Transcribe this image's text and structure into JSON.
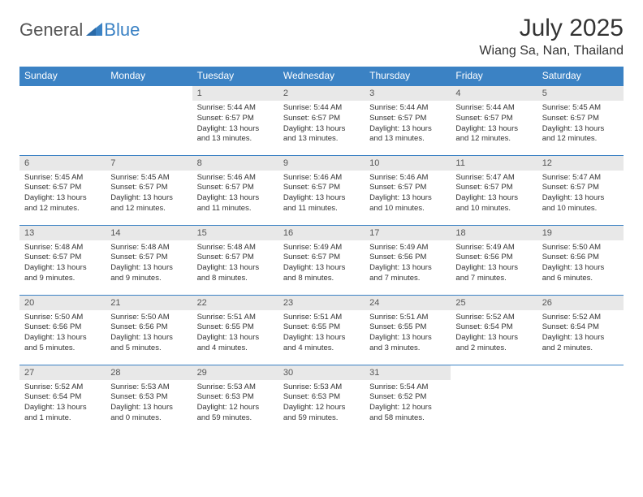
{
  "brand": {
    "part1": "General",
    "part2": "Blue"
  },
  "title": "July 2025",
  "location": "Wiang Sa, Nan, Thailand",
  "colors": {
    "accent": "#3b82c4",
    "header_bg": "#3b82c4",
    "header_text": "#ffffff",
    "daynum_bg": "#e8e8e8",
    "body_text": "#333333",
    "background": "#ffffff"
  },
  "typography": {
    "title_fontsize": 30,
    "location_fontsize": 16,
    "dayheader_fontsize": 12,
    "daynum_fontsize": 11,
    "body_fontsize": 9.5
  },
  "day_headers": [
    "Sunday",
    "Monday",
    "Tuesday",
    "Wednesday",
    "Thursday",
    "Friday",
    "Saturday"
  ],
  "weeks": [
    [
      {
        "n": "",
        "sunrise": "",
        "sunset": "",
        "daylight": ""
      },
      {
        "n": "",
        "sunrise": "",
        "sunset": "",
        "daylight": ""
      },
      {
        "n": "1",
        "sunrise": "Sunrise: 5:44 AM",
        "sunset": "Sunset: 6:57 PM",
        "daylight": "Daylight: 13 hours and 13 minutes."
      },
      {
        "n": "2",
        "sunrise": "Sunrise: 5:44 AM",
        "sunset": "Sunset: 6:57 PM",
        "daylight": "Daylight: 13 hours and 13 minutes."
      },
      {
        "n": "3",
        "sunrise": "Sunrise: 5:44 AM",
        "sunset": "Sunset: 6:57 PM",
        "daylight": "Daylight: 13 hours and 13 minutes."
      },
      {
        "n": "4",
        "sunrise": "Sunrise: 5:44 AM",
        "sunset": "Sunset: 6:57 PM",
        "daylight": "Daylight: 13 hours and 12 minutes."
      },
      {
        "n": "5",
        "sunrise": "Sunrise: 5:45 AM",
        "sunset": "Sunset: 6:57 PM",
        "daylight": "Daylight: 13 hours and 12 minutes."
      }
    ],
    [
      {
        "n": "6",
        "sunrise": "Sunrise: 5:45 AM",
        "sunset": "Sunset: 6:57 PM",
        "daylight": "Daylight: 13 hours and 12 minutes."
      },
      {
        "n": "7",
        "sunrise": "Sunrise: 5:45 AM",
        "sunset": "Sunset: 6:57 PM",
        "daylight": "Daylight: 13 hours and 12 minutes."
      },
      {
        "n": "8",
        "sunrise": "Sunrise: 5:46 AM",
        "sunset": "Sunset: 6:57 PM",
        "daylight": "Daylight: 13 hours and 11 minutes."
      },
      {
        "n": "9",
        "sunrise": "Sunrise: 5:46 AM",
        "sunset": "Sunset: 6:57 PM",
        "daylight": "Daylight: 13 hours and 11 minutes."
      },
      {
        "n": "10",
        "sunrise": "Sunrise: 5:46 AM",
        "sunset": "Sunset: 6:57 PM",
        "daylight": "Daylight: 13 hours and 10 minutes."
      },
      {
        "n": "11",
        "sunrise": "Sunrise: 5:47 AM",
        "sunset": "Sunset: 6:57 PM",
        "daylight": "Daylight: 13 hours and 10 minutes."
      },
      {
        "n": "12",
        "sunrise": "Sunrise: 5:47 AM",
        "sunset": "Sunset: 6:57 PM",
        "daylight": "Daylight: 13 hours and 10 minutes."
      }
    ],
    [
      {
        "n": "13",
        "sunrise": "Sunrise: 5:48 AM",
        "sunset": "Sunset: 6:57 PM",
        "daylight": "Daylight: 13 hours and 9 minutes."
      },
      {
        "n": "14",
        "sunrise": "Sunrise: 5:48 AM",
        "sunset": "Sunset: 6:57 PM",
        "daylight": "Daylight: 13 hours and 9 minutes."
      },
      {
        "n": "15",
        "sunrise": "Sunrise: 5:48 AM",
        "sunset": "Sunset: 6:57 PM",
        "daylight": "Daylight: 13 hours and 8 minutes."
      },
      {
        "n": "16",
        "sunrise": "Sunrise: 5:49 AM",
        "sunset": "Sunset: 6:57 PM",
        "daylight": "Daylight: 13 hours and 8 minutes."
      },
      {
        "n": "17",
        "sunrise": "Sunrise: 5:49 AM",
        "sunset": "Sunset: 6:56 PM",
        "daylight": "Daylight: 13 hours and 7 minutes."
      },
      {
        "n": "18",
        "sunrise": "Sunrise: 5:49 AM",
        "sunset": "Sunset: 6:56 PM",
        "daylight": "Daylight: 13 hours and 7 minutes."
      },
      {
        "n": "19",
        "sunrise": "Sunrise: 5:50 AM",
        "sunset": "Sunset: 6:56 PM",
        "daylight": "Daylight: 13 hours and 6 minutes."
      }
    ],
    [
      {
        "n": "20",
        "sunrise": "Sunrise: 5:50 AM",
        "sunset": "Sunset: 6:56 PM",
        "daylight": "Daylight: 13 hours and 5 minutes."
      },
      {
        "n": "21",
        "sunrise": "Sunrise: 5:50 AM",
        "sunset": "Sunset: 6:56 PM",
        "daylight": "Daylight: 13 hours and 5 minutes."
      },
      {
        "n": "22",
        "sunrise": "Sunrise: 5:51 AM",
        "sunset": "Sunset: 6:55 PM",
        "daylight": "Daylight: 13 hours and 4 minutes."
      },
      {
        "n": "23",
        "sunrise": "Sunrise: 5:51 AM",
        "sunset": "Sunset: 6:55 PM",
        "daylight": "Daylight: 13 hours and 4 minutes."
      },
      {
        "n": "24",
        "sunrise": "Sunrise: 5:51 AM",
        "sunset": "Sunset: 6:55 PM",
        "daylight": "Daylight: 13 hours and 3 minutes."
      },
      {
        "n": "25",
        "sunrise": "Sunrise: 5:52 AM",
        "sunset": "Sunset: 6:54 PM",
        "daylight": "Daylight: 13 hours and 2 minutes."
      },
      {
        "n": "26",
        "sunrise": "Sunrise: 5:52 AM",
        "sunset": "Sunset: 6:54 PM",
        "daylight": "Daylight: 13 hours and 2 minutes."
      }
    ],
    [
      {
        "n": "27",
        "sunrise": "Sunrise: 5:52 AM",
        "sunset": "Sunset: 6:54 PM",
        "daylight": "Daylight: 13 hours and 1 minute."
      },
      {
        "n": "28",
        "sunrise": "Sunrise: 5:53 AM",
        "sunset": "Sunset: 6:53 PM",
        "daylight": "Daylight: 13 hours and 0 minutes."
      },
      {
        "n": "29",
        "sunrise": "Sunrise: 5:53 AM",
        "sunset": "Sunset: 6:53 PM",
        "daylight": "Daylight: 12 hours and 59 minutes."
      },
      {
        "n": "30",
        "sunrise": "Sunrise: 5:53 AM",
        "sunset": "Sunset: 6:53 PM",
        "daylight": "Daylight: 12 hours and 59 minutes."
      },
      {
        "n": "31",
        "sunrise": "Sunrise: 5:54 AM",
        "sunset": "Sunset: 6:52 PM",
        "daylight": "Daylight: 12 hours and 58 minutes."
      },
      {
        "n": "",
        "sunrise": "",
        "sunset": "",
        "daylight": ""
      },
      {
        "n": "",
        "sunrise": "",
        "sunset": "",
        "daylight": ""
      }
    ]
  ]
}
